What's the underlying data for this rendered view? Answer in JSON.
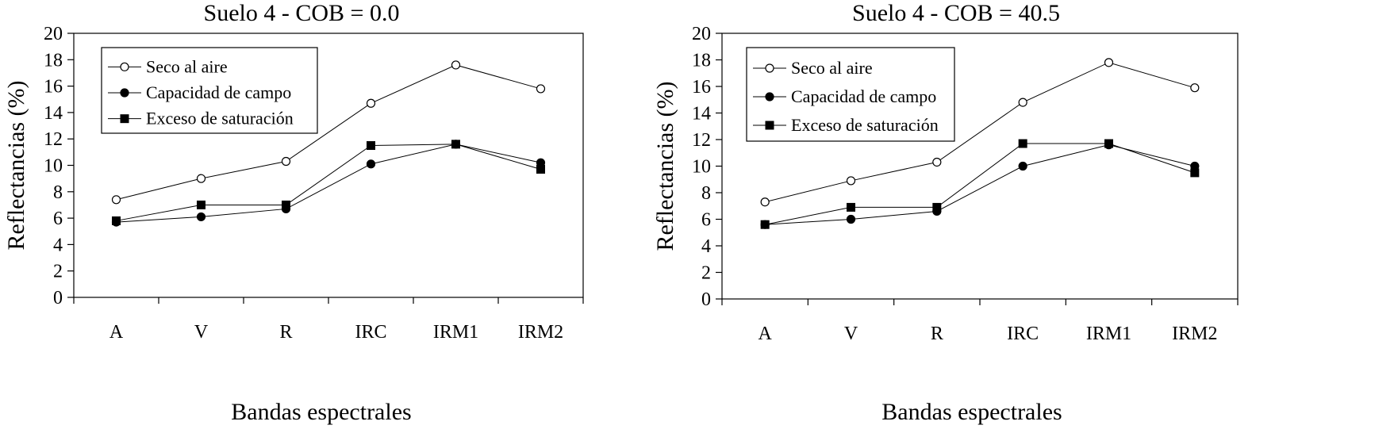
{
  "chart_data": [
    {
      "type": "line",
      "title": "Suelo 4  -  COB  =  0.0",
      "xlabel": "Bandas espectrales",
      "ylabel": "Reflectancias (%)",
      "categories": [
        "A",
        "V",
        "R",
        "IRC",
        "IRM1",
        "IRM2"
      ],
      "ylim": [
        0,
        20
      ],
      "yticks": [
        0,
        2,
        4,
        6,
        8,
        10,
        12,
        14,
        16,
        18,
        20
      ],
      "grid": false,
      "legend_position": "top-left",
      "series": [
        {
          "name": "Seco al aire",
          "marker": "open-circle",
          "values": [
            7.4,
            9.0,
            10.3,
            14.7,
            17.6,
            15.8
          ]
        },
        {
          "name": "Capacidad de campo",
          "marker": "filled-circle",
          "values": [
            5.7,
            6.1,
            6.7,
            10.1,
            11.6,
            10.2
          ]
        },
        {
          "name": "Exceso de saturación",
          "marker": "filled-square",
          "values": [
            5.8,
            7.0,
            7.0,
            11.5,
            11.6,
            9.7
          ]
        }
      ]
    },
    {
      "type": "line",
      "title": "Suelo 4  -  COB  =  40.5",
      "xlabel": "Bandas espectrales",
      "ylabel": "Reflectancias (%)",
      "categories": [
        "A",
        "V",
        "R",
        "IRC",
        "IRM1",
        "IRM2"
      ],
      "ylim": [
        0,
        20
      ],
      "yticks": [
        0,
        2,
        4,
        6,
        8,
        10,
        12,
        14,
        16,
        18,
        20
      ],
      "grid": false,
      "legend_position": "top-left",
      "series": [
        {
          "name": "Seco al aire",
          "marker": "open-circle",
          "values": [
            7.3,
            8.9,
            10.3,
            14.8,
            17.8,
            15.9
          ]
        },
        {
          "name": "Capacidad de campo",
          "marker": "filled-circle",
          "values": [
            5.6,
            6.0,
            6.6,
            10.0,
            11.6,
            10.0
          ]
        },
        {
          "name": "Exceso de saturación",
          "marker": "filled-square",
          "values": [
            5.6,
            6.9,
            6.9,
            11.7,
            11.7,
            9.5
          ]
        }
      ]
    }
  ]
}
